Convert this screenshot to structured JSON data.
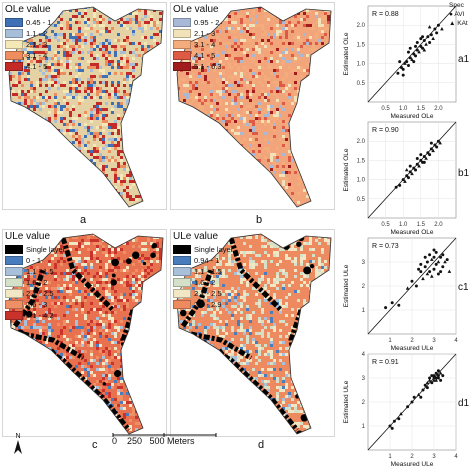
{
  "maps": [
    {
      "id": "a",
      "title": "OLe value",
      "label": "a",
      "classes": [
        "0.45 - 1",
        "1.1 - 2",
        "2.1 - 3",
        "3.1 - 4",
        "4.1 - 5"
      ],
      "colors": [
        "#3f6fb4",
        "#a7bed8",
        "#f3e8b6",
        "#ee8d5e",
        "#c32a28"
      ],
      "base": "#e4d2a4"
    },
    {
      "id": "b",
      "title": "OLe value",
      "label": "b",
      "classes": [
        "0.95 - 2",
        "2.1 - 3",
        "3.1 - 4",
        "4.1 - 5",
        "5.1 - 6.3"
      ],
      "colors": [
        "#a7b9d6",
        "#f2e2b9",
        "#f5ac7c",
        "#dd5a45",
        "#a11d1d"
      ],
      "base": "#f2a57a"
    },
    {
      "id": "c",
      "title": "ULe value",
      "label": "c",
      "classes": [
        "Single layer",
        "0 - 1",
        "1.1 - 1.5",
        "1.6 - 2",
        "2.1 - 2.5",
        "2.6 - 3",
        "3.1 - 4.2"
      ],
      "colors": [
        "#000000",
        "#4a7dbd",
        "#a9c0da",
        "#d5e0c8",
        "#f1e7c5",
        "#ee8f66",
        "#c9332c"
      ],
      "base": "#e8714f"
    },
    {
      "id": "d",
      "title": "ULe value",
      "label": "d",
      "classes": [
        "Single layer",
        "0.94 - 1",
        "1.1 - 1.5",
        "1.6 - 2",
        "2.1 - 2.5",
        "2.6 - 2.9"
      ],
      "colors": [
        "#000000",
        "#4a7dbd",
        "#a9c0da",
        "#d5e0c8",
        "#f1e7c5",
        "#ed8a60"
      ],
      "base": "#ee8a5f"
    }
  ],
  "scale": {
    "text": "0    250   500 Meters",
    "north": "N"
  },
  "species_legend": {
    "title": "Spec",
    "items": [
      "AVI",
      "KAt"
    ]
  },
  "chart_data": [
    {
      "type": "scatter",
      "panel": "a1",
      "r_text": "R = 0.88",
      "xlabel": "Measured OLe",
      "ylabel": "Estimated OLe",
      "xlim": [
        0,
        2.5
      ],
      "ylim": [
        0,
        2.5
      ],
      "xticks": [
        0.5,
        1.0,
        1.5,
        2.0
      ],
      "yticks": [
        0.5,
        1.0,
        1.5,
        2.0
      ],
      "identity_line": true,
      "points": [
        [
          0.85,
          0.75
        ],
        [
          0.95,
          0.9
        ],
        [
          1.0,
          0.85
        ],
        [
          1.05,
          1.0
        ],
        [
          1.1,
          1.05
        ],
        [
          1.15,
          0.95
        ],
        [
          1.2,
          1.15
        ],
        [
          1.25,
          1.1
        ],
        [
          1.3,
          1.25
        ],
        [
          1.35,
          1.2
        ],
        [
          1.4,
          1.35
        ],
        [
          1.45,
          1.3
        ],
        [
          1.5,
          1.45
        ],
        [
          1.55,
          1.4
        ],
        [
          1.6,
          1.6
        ],
        [
          1.65,
          1.5
        ],
        [
          1.7,
          1.7
        ],
        [
          1.75,
          1.55
        ],
        [
          1.8,
          1.75
        ],
        [
          1.85,
          1.65
        ],
        [
          1.9,
          1.9
        ],
        [
          1.95,
          1.8
        ],
        [
          2.0,
          2.0
        ],
        [
          2.1,
          1.9
        ],
        [
          1.2,
          1.4
        ],
        [
          1.3,
          1.05
        ],
        [
          1.5,
          1.65
        ],
        [
          1.6,
          1.35
        ],
        [
          0.9,
          1.05
        ],
        [
          1.0,
          0.7
        ],
        [
          1.4,
          1.55
        ],
        [
          1.75,
          1.95
        ],
        [
          1.55,
          1.7
        ],
        [
          1.15,
          1.3
        ],
        [
          1.35,
          1.45
        ]
      ]
    },
    {
      "type": "scatter",
      "panel": "b1",
      "r_text": "R = 0.90",
      "xlabel": "Measured OLe",
      "ylabel": "Estimated OLe",
      "xlim": [
        0,
        2.5
      ],
      "ylim": [
        0,
        2.5
      ],
      "xticks": [
        0.5,
        1.0,
        1.5,
        2.0
      ],
      "yticks": [
        0.5,
        1.0,
        1.5,
        2.0
      ],
      "identity_line": true,
      "points": [
        [
          0.8,
          0.8
        ],
        [
          0.9,
          0.85
        ],
        [
          1.0,
          1.0
        ],
        [
          1.05,
          0.95
        ],
        [
          1.1,
          1.1
        ],
        [
          1.15,
          1.05
        ],
        [
          1.2,
          1.2
        ],
        [
          1.25,
          1.15
        ],
        [
          1.3,
          1.3
        ],
        [
          1.35,
          1.25
        ],
        [
          1.4,
          1.4
        ],
        [
          1.45,
          1.35
        ],
        [
          1.5,
          1.5
        ],
        [
          1.55,
          1.45
        ],
        [
          1.6,
          1.6
        ],
        [
          1.65,
          1.55
        ],
        [
          1.7,
          1.7
        ],
        [
          1.75,
          1.65
        ],
        [
          1.8,
          1.8
        ],
        [
          1.85,
          1.75
        ],
        [
          1.9,
          1.9
        ],
        [
          1.95,
          1.85
        ],
        [
          2.0,
          2.0
        ],
        [
          2.05,
          1.95
        ],
        [
          1.2,
          1.35
        ],
        [
          1.5,
          1.65
        ],
        [
          1.8,
          1.95
        ],
        [
          1.1,
          1.25
        ],
        [
          1.6,
          1.45
        ],
        [
          1.4,
          1.55
        ]
      ]
    },
    {
      "type": "scatter",
      "panel": "c1",
      "r_text": "R = 0.73",
      "xlabel": "Measured ULe",
      "ylabel": "Estimated ULe",
      "xlim": [
        0,
        4
      ],
      "ylim": [
        0,
        4
      ],
      "xticks": [
        1,
        2,
        3,
        4
      ],
      "yticks": [
        1,
        2,
        3
      ],
      "identity_line": true,
      "points": [
        [
          0.8,
          1.1
        ],
        [
          1.1,
          1.3
        ],
        [
          1.4,
          1.2
        ],
        [
          1.8,
          1.9
        ],
        [
          2.0,
          2.2
        ],
        [
          2.2,
          2.0
        ],
        [
          2.4,
          2.6
        ],
        [
          2.5,
          2.3
        ],
        [
          2.6,
          2.8
        ],
        [
          2.7,
          3.0
        ],
        [
          2.8,
          2.6
        ],
        [
          2.9,
          3.1
        ],
        [
          3.0,
          2.7
        ],
        [
          3.0,
          3.2
        ],
        [
          3.1,
          2.9
        ],
        [
          3.2,
          3.0
        ],
        [
          3.2,
          2.5
        ],
        [
          3.3,
          3.2
        ],
        [
          3.4,
          2.8
        ],
        [
          3.5,
          3.0
        ],
        [
          2.6,
          3.2
        ],
        [
          2.8,
          3.3
        ],
        [
          3.1,
          3.4
        ],
        [
          2.9,
          2.4
        ],
        [
          3.3,
          2.6
        ],
        [
          3.6,
          3.1
        ],
        [
          2.4,
          2.9
        ],
        [
          2.7,
          2.5
        ],
        [
          3.0,
          3.5
        ],
        [
          3.4,
          3.3
        ],
        [
          2.3,
          2.7
        ],
        [
          3.7,
          2.6
        ]
      ]
    },
    {
      "type": "scatter",
      "panel": "d1",
      "r_text": "R = 0.91",
      "xlabel": "Measured ULe",
      "ylabel": "Estimated ULe",
      "xlim": [
        0,
        4
      ],
      "ylim": [
        0,
        4
      ],
      "xticks": [
        1,
        2,
        3,
        4
      ],
      "yticks": [
        1,
        2,
        3,
        4
      ],
      "identity_line": true,
      "points": [
        [
          1.0,
          1.0
        ],
        [
          1.2,
          1.2
        ],
        [
          1.4,
          1.3
        ],
        [
          1.5,
          1.5
        ],
        [
          1.8,
          1.8
        ],
        [
          2.0,
          2.0
        ],
        [
          2.1,
          2.2
        ],
        [
          2.3,
          2.3
        ],
        [
          2.5,
          2.5
        ],
        [
          2.6,
          2.7
        ],
        [
          2.7,
          2.6
        ],
        [
          2.8,
          2.9
        ],
        [
          2.9,
          2.8
        ],
        [
          3.0,
          3.0
        ],
        [
          3.0,
          3.1
        ],
        [
          3.1,
          2.9
        ],
        [
          3.1,
          3.2
        ],
        [
          3.2,
          3.0
        ],
        [
          3.2,
          3.1
        ],
        [
          3.3,
          3.2
        ],
        [
          3.3,
          2.9
        ],
        [
          3.4,
          3.1
        ],
        [
          2.9,
          3.1
        ],
        [
          3.0,
          2.9
        ],
        [
          3.1,
          3.0
        ],
        [
          2.8,
          3.0
        ],
        [
          3.2,
          3.3
        ],
        [
          2.7,
          2.8
        ],
        [
          1.1,
          0.9
        ],
        [
          2.4,
          2.2
        ]
      ]
    }
  ]
}
